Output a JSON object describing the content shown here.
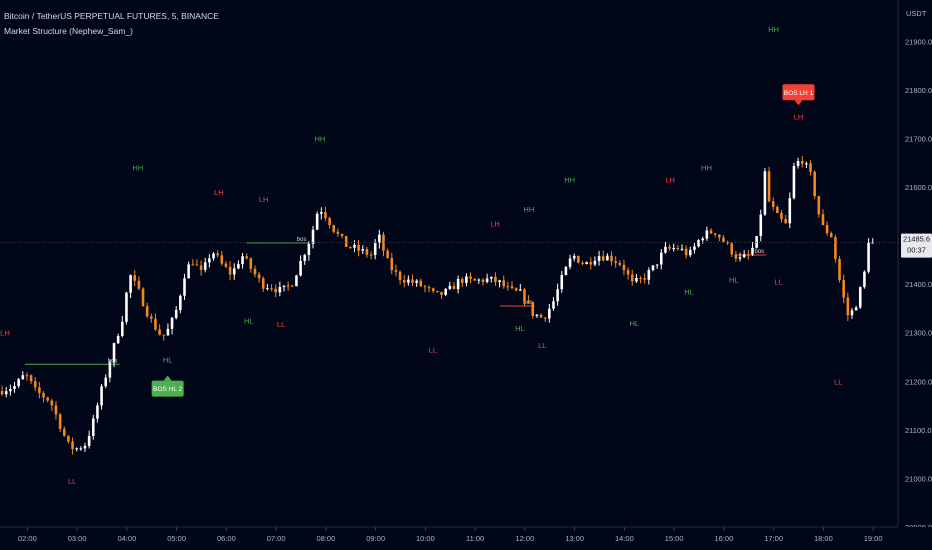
{
  "header": {
    "title": "Bitcoin / TetherUS PERPETUAL FUTURES, 5, BINANCE",
    "subtitle": "Market Structure (Nephew_Sam_)",
    "currency": "USDT"
  },
  "price_badge": {
    "price": "21485.6",
    "countdown": "00:37"
  },
  "colors": {
    "bull": "#ffffff",
    "bear": "#f5871f",
    "hl_green": "#4caf50",
    "ll_red": "#f44336",
    "background": "#020619",
    "axis_text": "#aeb3c2"
  },
  "chart_data": {
    "type": "candlestick",
    "xlabel": "",
    "ylabel": "",
    "ylim": [
      20900,
      21985
    ],
    "yticks": [
      20900,
      21000,
      21100,
      21200,
      21300,
      21400,
      21500,
      21600,
      21700,
      21800,
      21900
    ],
    "ytick_labels": [
      "20900.0",
      "21000.0",
      "21100.0",
      "21200.0",
      "21300.0",
      "21400.0",
      "21500.0",
      "21600.0",
      "21700.0",
      "21800.0",
      "21900.0"
    ],
    "x_range_hours": [
      1.45,
      19.5
    ],
    "xticks": [
      2,
      3,
      4,
      5,
      6,
      7,
      8,
      9,
      10,
      11,
      12,
      13,
      14,
      15,
      16,
      17,
      18,
      19
    ],
    "xtick_labels": [
      "02:00",
      "03:00",
      "04:00",
      "05:00",
      "06:00",
      "07:00",
      "08:00",
      "09:00",
      "10:00",
      "11:00",
      "12:00",
      "13:00",
      "14:00",
      "15:00",
      "16:00",
      "17:00",
      "18:00",
      "19:00"
    ],
    "current_price": 21485.6,
    "price_path": [
      [
        1.45,
        21180
      ],
      [
        1.8,
        21190
      ],
      [
        2.0,
        21215
      ],
      [
        2.2,
        21180
      ],
      [
        2.5,
        21160
      ],
      [
        2.7,
        21110
      ],
      [
        2.85,
        21070
      ],
      [
        3.0,
        21060
      ],
      [
        3.2,
        21070
      ],
      [
        3.35,
        21110
      ],
      [
        3.5,
        21170
      ],
      [
        3.75,
        21260
      ],
      [
        3.95,
        21330
      ],
      [
        4.1,
        21420
      ],
      [
        4.3,
        21380
      ],
      [
        4.5,
        21330
      ],
      [
        4.75,
        21290
      ],
      [
        4.9,
        21310
      ],
      [
        5.05,
        21350
      ],
      [
        5.2,
        21420
      ],
      [
        5.35,
        21450
      ],
      [
        5.55,
        21420
      ],
      [
        5.75,
        21470
      ],
      [
        5.95,
        21440
      ],
      [
        6.15,
        21420
      ],
      [
        6.35,
        21460
      ],
      [
        6.55,
        21430
      ],
      [
        6.75,
        21400
      ],
      [
        6.95,
        21395
      ],
      [
        7.15,
        21385
      ],
      [
        7.35,
        21400
      ],
      [
        7.55,
        21450
      ],
      [
        7.75,
        21500
      ],
      [
        7.9,
        21560
      ],
      [
        8.05,
        21540
      ],
      [
        8.25,
        21505
      ],
      [
        8.45,
        21480
      ],
      [
        8.7,
        21470
      ],
      [
        8.95,
        21460
      ],
      [
        9.1,
        21500
      ],
      [
        9.3,
        21440
      ],
      [
        9.5,
        21415
      ],
      [
        9.75,
        21405
      ],
      [
        10.0,
        21395
      ],
      [
        10.25,
        21375
      ],
      [
        10.5,
        21385
      ],
      [
        10.75,
        21410
      ],
      [
        11.0,
        21405
      ],
      [
        11.25,
        21410
      ],
      [
        11.5,
        21405
      ],
      [
        11.75,
        21385
      ],
      [
        12.0,
        21380
      ],
      [
        12.2,
        21340
      ],
      [
        12.4,
        21330
      ],
      [
        12.6,
        21360
      ],
      [
        12.8,
        21415
      ],
      [
        13.0,
        21460
      ],
      [
        13.25,
        21440
      ],
      [
        13.5,
        21460
      ],
      [
        13.75,
        21455
      ],
      [
        14.0,
        21440
      ],
      [
        14.2,
        21400
      ],
      [
        14.4,
        21410
      ],
      [
        14.6,
        21430
      ],
      [
        14.85,
        21470
      ],
      [
        15.1,
        21475
      ],
      [
        15.35,
        21460
      ],
      [
        15.6,
        21500
      ],
      [
        15.85,
        21510
      ],
      [
        16.1,
        21480
      ],
      [
        16.35,
        21450
      ],
      [
        16.55,
        21460
      ],
      [
        16.75,
        21500
      ],
      [
        16.85,
        21640
      ],
      [
        16.95,
        21570
      ],
      [
        17.1,
        21540
      ],
      [
        17.3,
        21520
      ],
      [
        17.45,
        21640
      ],
      [
        17.6,
        21660
      ],
      [
        17.8,
        21620
      ],
      [
        18.0,
        21520
      ],
      [
        18.2,
        21500
      ],
      [
        18.4,
        21390
      ],
      [
        18.55,
        21330
      ],
      [
        18.7,
        21360
      ],
      [
        18.85,
        21410
      ],
      [
        18.95,
        21485.6
      ]
    ],
    "structure_labels": [
      {
        "text": "LH",
        "x": 1.55,
        "y": 21300,
        "type": "high"
      },
      {
        "text": "LL",
        "x": 2.9,
        "y": 20995,
        "type": "low"
      },
      {
        "text": "HH",
        "x": 4.22,
        "y": 21640,
        "type": "high"
      },
      {
        "text": "HL",
        "x": 4.82,
        "y": 21245,
        "type": "low"
      },
      {
        "text": "LH",
        "x": 5.85,
        "y": 21590,
        "type": "high"
      },
      {
        "text": "HL",
        "x": 6.45,
        "y": 21325,
        "type": "low"
      },
      {
        "text": "LH",
        "x": 6.75,
        "y": 21575,
        "type": "high"
      },
      {
        "text": "LL",
        "x": 7.1,
        "y": 21318,
        "type": "low"
      },
      {
        "text": "HH",
        "x": 7.88,
        "y": 21700,
        "type": "high"
      },
      {
        "text": "LL",
        "x": 10.15,
        "y": 21265,
        "type": "low"
      },
      {
        "text": "LH",
        "x": 11.4,
        "y": 21525,
        "type": "high"
      },
      {
        "text": "HL",
        "x": 11.9,
        "y": 21310,
        "type": "low"
      },
      {
        "text": "HH",
        "x": 12.08,
        "y": 21555,
        "type": "high"
      },
      {
        "text": "LL",
        "x": 12.35,
        "y": 21275,
        "type": "low"
      },
      {
        "text": "HH",
        "x": 12.9,
        "y": 21615,
        "type": "high"
      },
      {
        "text": "HL",
        "x": 14.2,
        "y": 21320,
        "type": "low"
      },
      {
        "text": "LH",
        "x": 14.92,
        "y": 21615,
        "type": "high"
      },
      {
        "text": "HL",
        "x": 15.3,
        "y": 21385,
        "type": "low"
      },
      {
        "text": "HH",
        "x": 15.65,
        "y": 21640,
        "type": "high"
      },
      {
        "text": "HL",
        "x": 16.2,
        "y": 21410,
        "type": "low"
      },
      {
        "text": "HH",
        "x": 17.0,
        "y": 21925,
        "type": "high"
      },
      {
        "text": "LH",
        "x": 17.5,
        "y": 21745,
        "type": "high"
      },
      {
        "text": "LL",
        "x": 17.1,
        "y": 21405,
        "type": "low"
      },
      {
        "text": "LL",
        "x": 18.3,
        "y": 21200,
        "type": "low"
      }
    ],
    "bos_lines": [
      {
        "x0": 1.95,
        "x1": 3.85,
        "y": 21235,
        "label": "bos",
        "color": "#4caf50"
      },
      {
        "x0": 6.4,
        "x1": 7.65,
        "y": 21485,
        "label": "bos",
        "color": "#4caf50"
      },
      {
        "x0": 11.5,
        "x1": 12.2,
        "y": 21355,
        "label": "bos",
        "color": "#f44336"
      },
      {
        "x0": 16.25,
        "x1": 16.85,
        "y": 21460,
        "label": "bos",
        "color": "#f44336"
      }
    ],
    "bos_callouts": [
      {
        "text": "BOS HL 2",
        "x": 4.82,
        "y": 21185,
        "pointer": "up",
        "color": "#4caf50"
      },
      {
        "text": "BOS LH 1",
        "x": 17.5,
        "y": 21795,
        "pointer": "down",
        "color": "#f44336"
      }
    ]
  }
}
